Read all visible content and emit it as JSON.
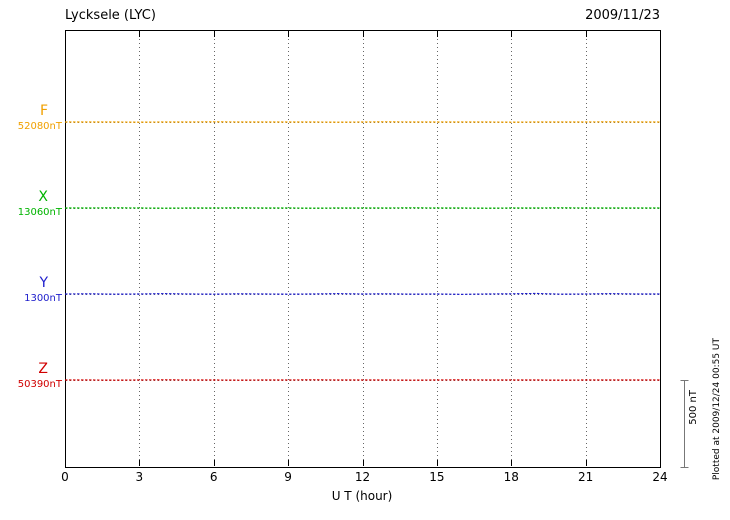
{
  "header": {
    "title": "Lycksele (LYC)",
    "date": "2009/11/23"
  },
  "axis": {
    "xlabel": "U T (hour)",
    "x_ticks": [
      0,
      3,
      6,
      9,
      12,
      15,
      18,
      21,
      24
    ]
  },
  "scale_bar": {
    "label": "500 nT",
    "nT": 500
  },
  "footer": {
    "plotted_at": "Plotted at 2009/12/24 00:55 UT"
  },
  "chart_data": {
    "type": "line",
    "title": "Lycksele (LYC)",
    "date": "2009/11/23",
    "xlabel": "U T (hour)",
    "x_range": [
      0,
      24
    ],
    "x_ticks": [
      0,
      3,
      6,
      9,
      12,
      15,
      18,
      21,
      24
    ],
    "x_hours": [
      0,
      1,
      2,
      3,
      4,
      5,
      6,
      7,
      8,
      9,
      10,
      11,
      12,
      13,
      14,
      15,
      16,
      17,
      18,
      19,
      20,
      21,
      22,
      23,
      24
    ],
    "scale_bar_nT": 500,
    "grid": "dotted",
    "series": [
      {
        "name": "F",
        "baseline": 52080,
        "baseline_label": "52080nT",
        "color": "#F0A000",
        "values": [
          52080,
          52080,
          52080,
          52079,
          52080,
          52080,
          52081,
          52080,
          52080,
          52080,
          52080,
          52079,
          52080,
          52081,
          52080,
          52080,
          52080,
          52080,
          52079,
          52080,
          52080,
          52080,
          52081,
          52080,
          52080
        ]
      },
      {
        "name": "X",
        "baseline": 13060,
        "baseline_label": "13060nT",
        "color": "#00B400",
        "values": [
          13060,
          13060,
          13061,
          13060,
          13059,
          13060,
          13060,
          13061,
          13060,
          13060,
          13059,
          13060,
          13060,
          13060,
          13061,
          13060,
          13060,
          13059,
          13060,
          13060,
          13061,
          13060,
          13060,
          13060,
          13060
        ]
      },
      {
        "name": "Y",
        "baseline": 1300,
        "baseline_label": "1300nT",
        "color": "#2020CC",
        "values": [
          1300,
          1301,
          1299,
          1300,
          1302,
          1300,
          1299,
          1301,
          1300,
          1299,
          1300,
          1302,
          1300,
          1301,
          1299,
          1300,
          1298,
          1300,
          1301,
          1303,
          1299,
          1300,
          1302,
          1300,
          1300
        ]
      },
      {
        "name": "Z",
        "baseline": 50390,
        "baseline_label": "50390nT",
        "color": "#D00000",
        "values": [
          50390,
          50390,
          50389,
          50390,
          50391,
          50390,
          50390,
          50389,
          50390,
          50390,
          50391,
          50390,
          50390,
          50390,
          50389,
          50390,
          50391,
          50390,
          50390,
          50390,
          50389,
          50390,
          50390,
          50390,
          50390
        ]
      }
    ]
  }
}
